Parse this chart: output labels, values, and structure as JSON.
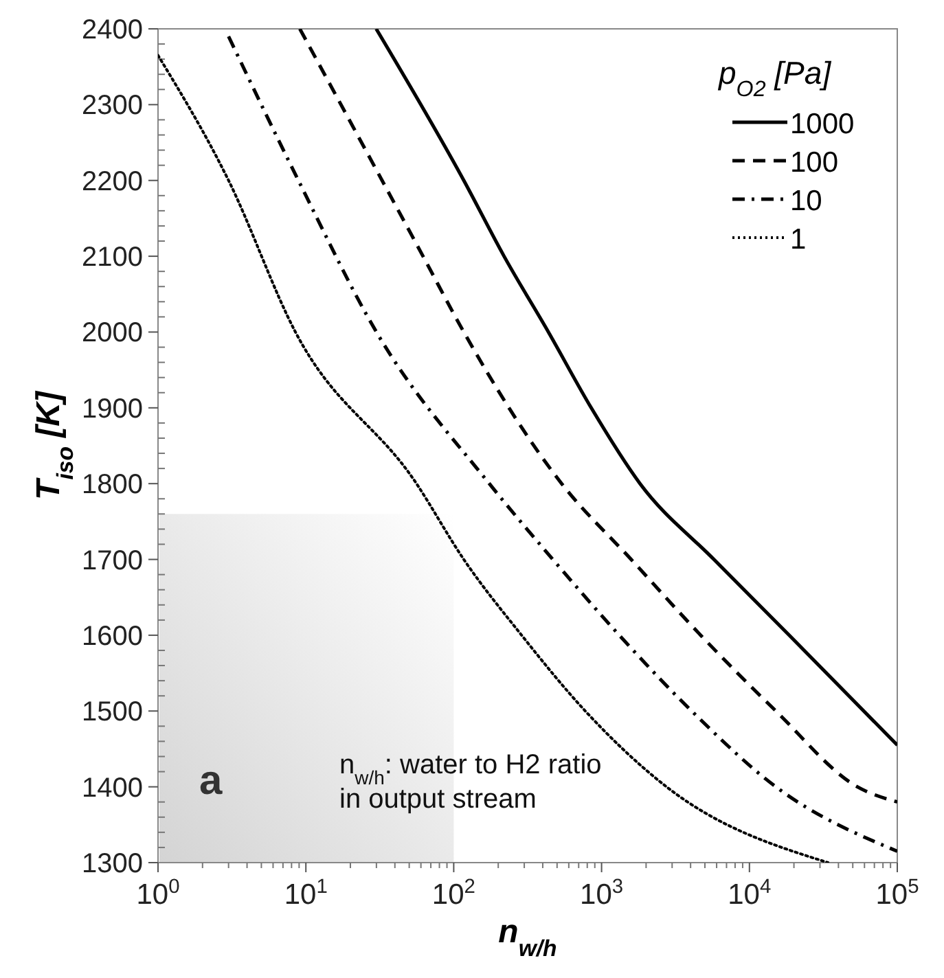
{
  "chart_data": {
    "type": "line",
    "xlabel": "n$_{w/h}$",
    "ylabel": "T$_{iso}$ [K]",
    "legend_title": "p$_{O2}$ [Pa]",
    "legend": "top right",
    "log": "x",
    "xlim": [
      1,
      100000
    ],
    "xticks": [
      {
        "value": 1,
        "label": "10$^{0}$"
      },
      {
        "value": 10,
        "label": "10$^{1}$"
      },
      {
        "value": 100,
        "label": "10$^{2}$"
      },
      {
        "value": 1000,
        "label": "10$^{3}$"
      },
      {
        "value": 10000,
        "label": "10$^{4}$"
      },
      {
        "value": 100000,
        "label": "10$^{5}$"
      }
    ],
    "ylim": [
      1300,
      2400
    ],
    "yticks": [
      1300,
      1400,
      1500,
      1600,
      1700,
      1800,
      1900,
      2000,
      2100,
      2200,
      2300,
      2400
    ],
    "grid": false,
    "annotations": [
      "a",
      "n$_{w/h}$: water to H2 ratio in output stream"
    ],
    "series": [
      {
        "name": "1000",
        "color": "#000000",
        "line_style": "solid",
        "x": [
          29.9,
          117,
          219,
          437,
          851,
          1820,
          5750,
          18600,
          100000
        ],
        "values": [
          2400,
          2200,
          2100,
          2000,
          1900,
          1800,
          1700,
          1600,
          1455
        ]
      },
      {
        "name": "100",
        "color": "#000000",
        "line_style": "dashed",
        "x": [
          9.1,
          62,
          117,
          537,
          1585,
          4680,
          15100,
          53700,
          100000
        ],
        "values": [
          2400,
          2100,
          2000,
          1800,
          1700,
          1600,
          1500,
          1400,
          1380
        ]
      },
      {
        "name": "10",
        "color": "#000000",
        "line_style": "dashdot",
        "x": [
          3.0,
          8.9,
          30,
          174,
          468,
          1318,
          4070,
          15100,
          100000
        ],
        "values": [
          2390,
          2200,
          2000,
          1800,
          1700,
          1600,
          1500,
          1400,
          1315
        ]
      },
      {
        "name": "1",
        "color": "#000000",
        "line_style": "dotted",
        "x": [
          1.0,
          3.0,
          8.5,
          56,
          117,
          288,
          776,
          2750,
          34000
        ],
        "values": [
          2365,
          2200,
          2000,
          1800,
          1700,
          1600,
          1500,
          1400,
          1300
        ]
      }
    ]
  }
}
